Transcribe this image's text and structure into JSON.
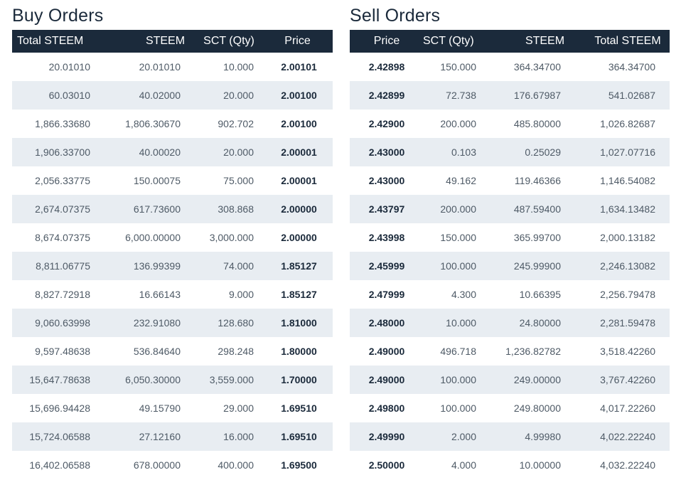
{
  "colors": {
    "header_bg": "#1b2a3b",
    "header_text": "#ffffff",
    "title_text": "#1b2a3b",
    "row_stripe": "#e8edf2",
    "cell_text": "#4e5a66"
  },
  "buy": {
    "title": "Buy Orders",
    "columns": [
      "Total STEEM",
      "STEEM",
      "SCT (Qty)",
      "Price"
    ],
    "rows": [
      [
        "20.01010",
        "20.01010",
        "10.000",
        "2.00101"
      ],
      [
        "60.03010",
        "40.02000",
        "20.000",
        "2.00100"
      ],
      [
        "1,866.33680",
        "1,806.30670",
        "902.702",
        "2.00100"
      ],
      [
        "1,906.33700",
        "40.00020",
        "20.000",
        "2.00001"
      ],
      [
        "2,056.33775",
        "150.00075",
        "75.000",
        "2.00001"
      ],
      [
        "2,674.07375",
        "617.73600",
        "308.868",
        "2.00000"
      ],
      [
        "8,674.07375",
        "6,000.00000",
        "3,000.000",
        "2.00000"
      ],
      [
        "8,811.06775",
        "136.99399",
        "74.000",
        "1.85127"
      ],
      [
        "8,827.72918",
        "16.66143",
        "9.000",
        "1.85127"
      ],
      [
        "9,060.63998",
        "232.91080",
        "128.680",
        "1.81000"
      ],
      [
        "9,597.48638",
        "536.84640",
        "298.248",
        "1.80000"
      ],
      [
        "15,647.78638",
        "6,050.30000",
        "3,559.000",
        "1.70000"
      ],
      [
        "15,696.94428",
        "49.15790",
        "29.000",
        "1.69510"
      ],
      [
        "15,724.06588",
        "27.12160",
        "16.000",
        "1.69510"
      ],
      [
        "16,402.06588",
        "678.00000",
        "400.000",
        "1.69500"
      ]
    ]
  },
  "sell": {
    "title": "Sell Orders",
    "columns": [
      "Price",
      "SCT (Qty)",
      "STEEM",
      "Total STEEM"
    ],
    "rows": [
      [
        "2.42898",
        "150.000",
        "364.34700",
        "364.34700"
      ],
      [
        "2.42899",
        "72.738",
        "176.67987",
        "541.02687"
      ],
      [
        "2.42900",
        "200.000",
        "485.80000",
        "1,026.82687"
      ],
      [
        "2.43000",
        "0.103",
        "0.25029",
        "1,027.07716"
      ],
      [
        "2.43000",
        "49.162",
        "119.46366",
        "1,146.54082"
      ],
      [
        "2.43797",
        "200.000",
        "487.59400",
        "1,634.13482"
      ],
      [
        "2.43998",
        "150.000",
        "365.99700",
        "2,000.13182"
      ],
      [
        "2.45999",
        "100.000",
        "245.99900",
        "2,246.13082"
      ],
      [
        "2.47999",
        "4.300",
        "10.66395",
        "2,256.79478"
      ],
      [
        "2.48000",
        "10.000",
        "24.80000",
        "2,281.59478"
      ],
      [
        "2.49000",
        "496.718",
        "1,236.82782",
        "3,518.42260"
      ],
      [
        "2.49000",
        "100.000",
        "249.00000",
        "3,767.42260"
      ],
      [
        "2.49800",
        "100.000",
        "249.80000",
        "4,017.22260"
      ],
      [
        "2.49990",
        "2.000",
        "4.99980",
        "4,022.22240"
      ],
      [
        "2.50000",
        "4.000",
        "10.00000",
        "4,032.22240"
      ]
    ]
  }
}
